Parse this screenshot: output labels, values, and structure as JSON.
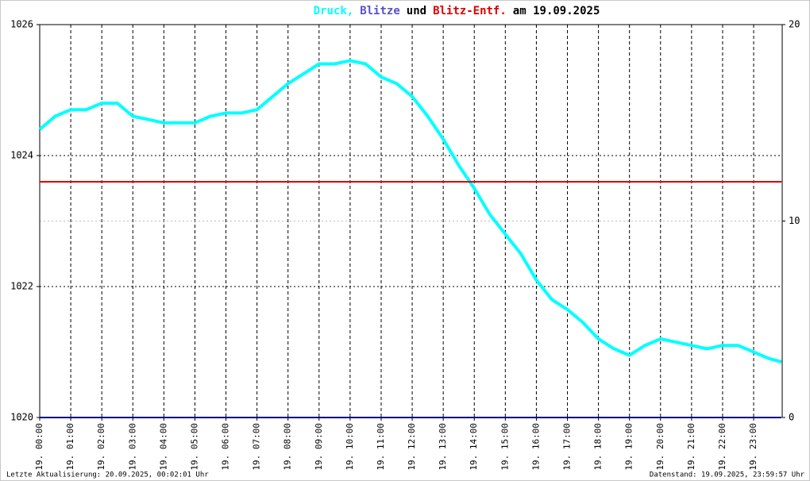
{
  "chart_data": {
    "type": "line",
    "title_parts": [
      "und",
      "am 19.09.2025"
    ],
    "x": [
      0,
      0.5,
      1,
      1.5,
      2,
      2.5,
      3,
      3.5,
      4,
      4.5,
      5,
      5.5,
      6,
      6.5,
      7,
      7.5,
      8,
      8.5,
      9,
      9.5,
      10,
      10.5,
      11,
      11.5,
      12,
      12.5,
      13,
      13.5,
      14,
      14.5,
      15,
      15.5,
      16,
      16.5,
      17,
      17.5,
      18,
      18.5,
      19,
      19.5,
      20,
      20.5,
      21,
      21.5,
      22,
      22.5,
      23,
      23.5,
      23.9
    ],
    "series": [
      {
        "name": "Druck,",
        "color": "#00ffff",
        "axis": "y",
        "values": [
          1024.4,
          1024.6,
          1024.7,
          1024.7,
          1024.8,
          1024.8,
          1024.6,
          1024.55,
          1024.5,
          1024.5,
          1024.5,
          1024.6,
          1024.65,
          1024.65,
          1024.7,
          1024.9,
          1025.1,
          1025.25,
          1025.4,
          1025.4,
          1025.45,
          1025.4,
          1025.2,
          1025.1,
          1024.9,
          1024.6,
          1024.25,
          1023.85,
          1023.5,
          1023.1,
          1022.8,
          1022.5,
          1022.1,
          1021.8,
          1021.65,
          1021.45,
          1021.2,
          1021.05,
          1020.95,
          1021.1,
          1021.2,
          1021.15,
          1021.1,
          1021.05,
          1021.1,
          1021.1,
          1021.0,
          1020.9,
          1020.85
        ]
      },
      {
        "name": "Blitze",
        "color": "#000080",
        "title_color": "#5a50c8",
        "axis": "y2",
        "values": [
          0,
          0,
          0,
          0,
          0,
          0,
          0,
          0,
          0,
          0,
          0,
          0,
          0,
          0,
          0,
          0,
          0,
          0,
          0,
          0,
          0,
          0,
          0,
          0,
          0,
          0,
          0,
          0,
          0,
          0,
          0,
          0,
          0,
          0,
          0,
          0,
          0,
          0,
          0,
          0,
          0,
          0,
          0,
          0,
          0,
          0,
          0,
          0,
          0
        ]
      },
      {
        "name": "Blitz-Entf.",
        "color": "#dd0000",
        "axis": "y2",
        "values": [
          12,
          12,
          12,
          12,
          12,
          12,
          12,
          12,
          12,
          12,
          12,
          12,
          12,
          12,
          12,
          12,
          12,
          12,
          12,
          12,
          12,
          12,
          12,
          12,
          12,
          12,
          12,
          12,
          12,
          12,
          12,
          12,
          12,
          12,
          12,
          12,
          12,
          12,
          12,
          12,
          12,
          12,
          12,
          12,
          12,
          12,
          12,
          12,
          12
        ]
      }
    ],
    "xlim": [
      0,
      23.92
    ],
    "xticks": [
      {
        "value": 0,
        "label": "19. 00:00"
      },
      {
        "value": 1,
        "label": "19. 01:00"
      },
      {
        "value": 2,
        "label": "19. 02:00"
      },
      {
        "value": 3,
        "label": "19. 03:00"
      },
      {
        "value": 4,
        "label": "19. 04:00"
      },
      {
        "value": 5,
        "label": "19. 05:00"
      },
      {
        "value": 6,
        "label": "19. 06:00"
      },
      {
        "value": 7,
        "label": "19. 07:00"
      },
      {
        "value": 8,
        "label": "19. 08:00"
      },
      {
        "value": 9,
        "label": "19. 09:00"
      },
      {
        "value": 10,
        "label": "19. 10:00"
      },
      {
        "value": 11,
        "label": "19. 11:00"
      },
      {
        "value": 12,
        "label": "19. 12:00"
      },
      {
        "value": 13,
        "label": "19. 13:00"
      },
      {
        "value": 14,
        "label": "19. 14:00"
      },
      {
        "value": 15,
        "label": "19. 15:00"
      },
      {
        "value": 16,
        "label": "19. 16:00"
      },
      {
        "value": 17,
        "label": "19. 17:00"
      },
      {
        "value": 18,
        "label": "19. 18:00"
      },
      {
        "value": 19,
        "label": "19. 19:00"
      },
      {
        "value": 20,
        "label": "19. 20:00"
      },
      {
        "value": 21,
        "label": "19. 21:00"
      },
      {
        "value": 22,
        "label": "19. 22:00"
      },
      {
        "value": 23,
        "label": "19. 23:00"
      }
    ],
    "ylim": [
      1020,
      1026
    ],
    "yticks": [
      1020,
      1022,
      1024,
      1026
    ],
    "y2lim": [
      0,
      20
    ],
    "y2ticks": [
      0,
      10,
      20
    ],
    "y2tick_colors": [
      "#000000",
      "#dd0000",
      "#000000"
    ],
    "grid": true,
    "footer_left": "Letzte Aktualisierung: 20.09.2025, 00:02:01 Uhr",
    "footer_right": "Datenstand: 19.09.2025, 23:59:57 Uhr"
  }
}
